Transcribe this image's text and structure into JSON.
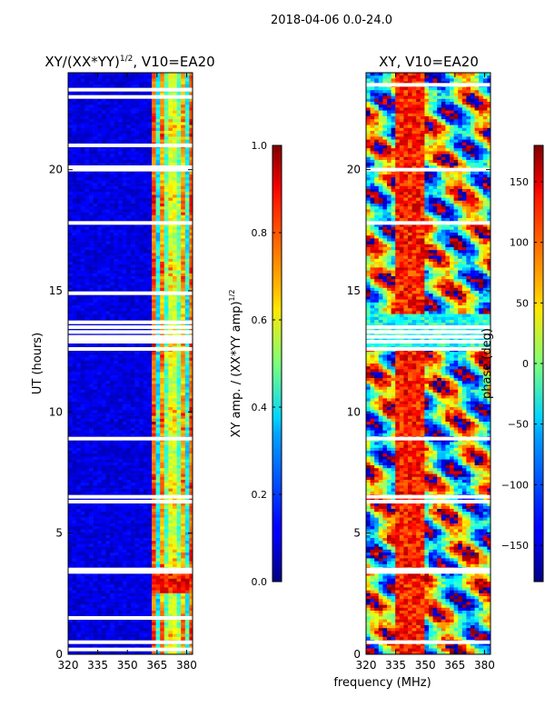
{
  "chart_data": [
    {
      "type": "heatmap",
      "suptitle": "2018-04-06 0.0-24.0",
      "title_main": "XY/(XX*YY)",
      "title_sup": "1/2",
      "title_tail": ", V10=EA20",
      "xlabel": "",
      "ylabel": "UT (hours)",
      "xlim": [
        320,
        383
      ],
      "ylim": [
        0,
        24
      ],
      "xticks": [
        320,
        335,
        350,
        365,
        380
      ],
      "yticks": [
        0,
        5,
        10,
        15,
        20
      ],
      "quantity": "normalized XY amplitude",
      "colormap": "jet",
      "masked_hours": [
        0.2,
        0.5,
        1.5,
        3.4,
        3.5,
        6.3,
        6.5,
        8.9,
        12.6,
        12.9,
        13.0,
        13.1,
        13.3,
        13.5,
        13.7,
        14.9,
        17.8,
        20.0,
        20.1,
        21.0,
        23.0,
        23.3
      ]
    },
    {
      "type": "colorbar",
      "label_main": "XY amp. / (XX*YY amp)",
      "label_sup": "1/2",
      "range": [
        0.0,
        1.0
      ],
      "ticks": [
        "0.0",
        "0.2",
        "0.4",
        "0.6",
        "0.8",
        "1.0"
      ],
      "tick_values": [
        0.0,
        0.2,
        0.4,
        0.6,
        0.8,
        1.0
      ]
    },
    {
      "type": "heatmap",
      "title": "XY, V10=EA20",
      "xlabel": "frequency (MHz)",
      "ylabel": "",
      "xlim": [
        320,
        383
      ],
      "ylim": [
        0,
        24
      ],
      "xticks": [
        320,
        335,
        350,
        365,
        380
      ],
      "yticks": [
        0,
        5,
        10,
        15,
        20
      ],
      "quantity": "XY phase (deg)",
      "colormap": "jet",
      "masked_hours": [
        0.5,
        3.4,
        3.5,
        6.3,
        6.5,
        8.9,
        12.6,
        12.9,
        13.1,
        13.3,
        13.5,
        17.8,
        20.0,
        23.5
      ]
    },
    {
      "type": "colorbar",
      "label": "phase (deg)",
      "range": [
        -180,
        180
      ],
      "ticks": [
        "150",
        "100",
        "50",
        "0",
        "−50",
        "−100",
        "−150"
      ],
      "tick_values": [
        150,
        100,
        50,
        0,
        -50,
        -100,
        -150
      ]
    }
  ]
}
